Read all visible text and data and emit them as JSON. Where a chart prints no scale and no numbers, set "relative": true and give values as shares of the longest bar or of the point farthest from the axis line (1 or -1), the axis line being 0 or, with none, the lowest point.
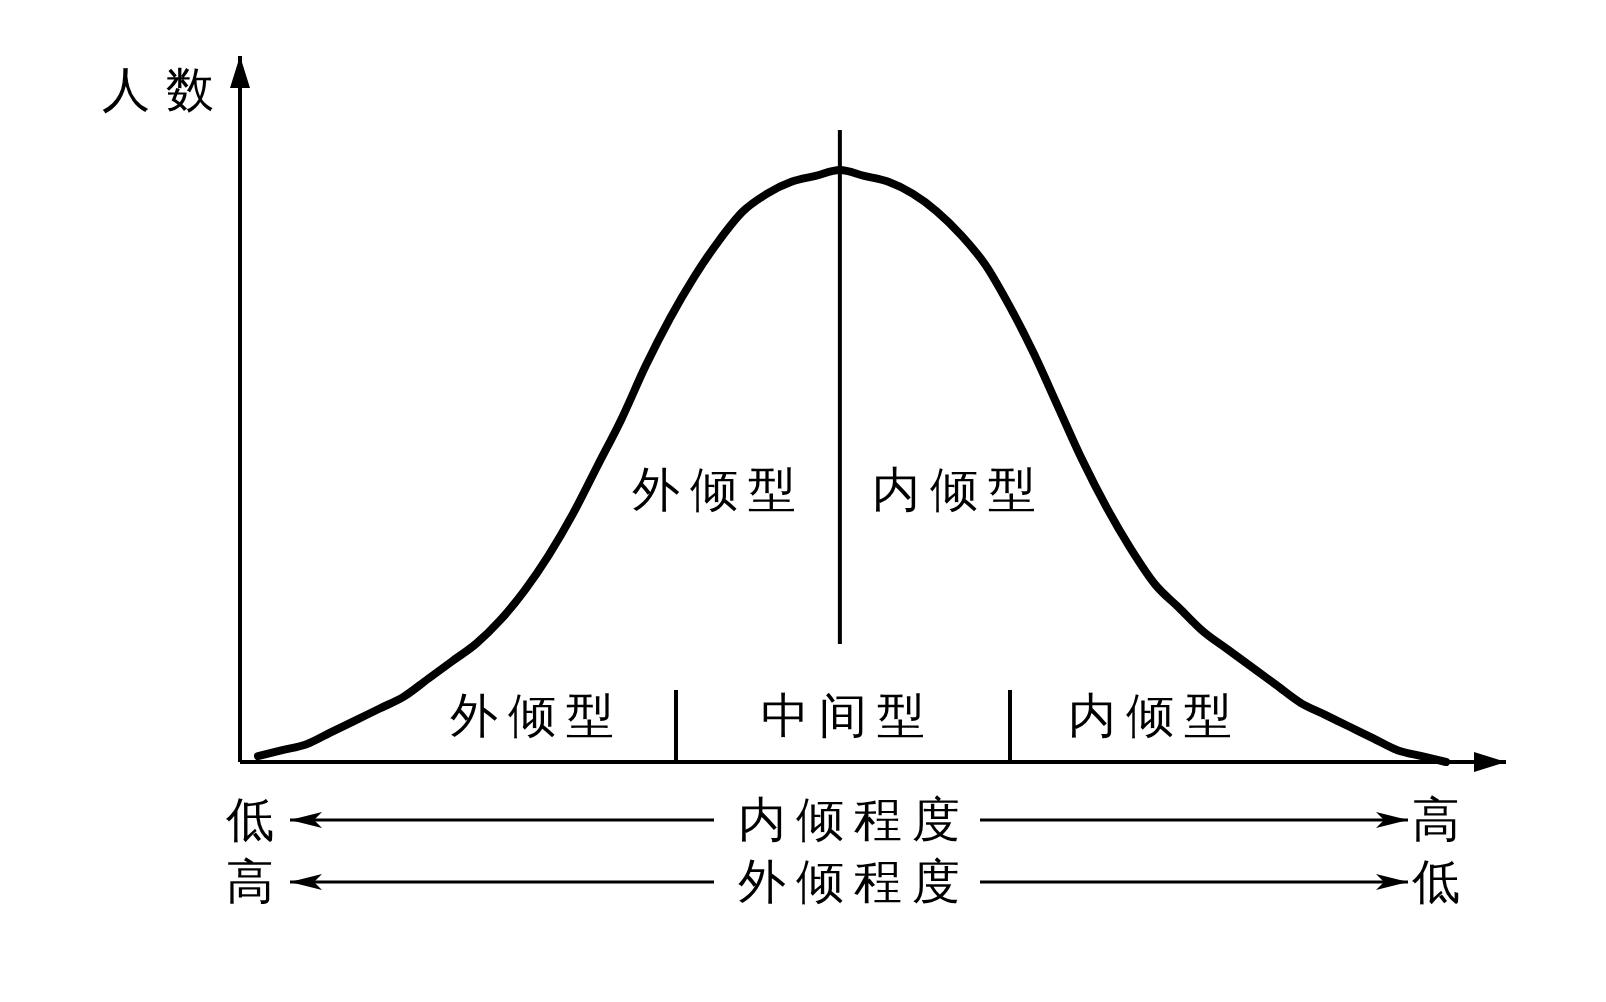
{
  "chart_data": {
    "type": "line",
    "relative": true,
    "ylabel": "人数",
    "categories": [
      null,
      null,
      null,
      null,
      null,
      null,
      null,
      null,
      null,
      null,
      null,
      null,
      null,
      null,
      null,
      null,
      null,
      null,
      null,
      null,
      null,
      null,
      null,
      null,
      null,
      null,
      null,
      null,
      null,
      null,
      null,
      null,
      null,
      null,
      null,
      null,
      null,
      null,
      null,
      null,
      null,
      null,
      null,
      null,
      null,
      null,
      null,
      null,
      null,
      null
    ],
    "series": [
      {
        "color": "#000000",
        "values": [
          0.01,
          0.02,
          0.03,
          0.05,
          0.07,
          0.09,
          0.11,
          0.14,
          0.17,
          0.2,
          0.24,
          0.29,
          0.35,
          0.42,
          0.5,
          0.58,
          0.67,
          0.75,
          0.82,
          0.88,
          0.93,
          0.96,
          0.98,
          0.99,
          1,
          0.99,
          0.98,
          0.96,
          0.93,
          0.89,
          0.84,
          0.77,
          0.69,
          0.6,
          0.51,
          0.43,
          0.36,
          0.3,
          0.26,
          0.22,
          0.19,
          0.16,
          0.13,
          0.1,
          0.08,
          0.06,
          0.04,
          0.02,
          0.01,
          0
        ]
      }
    ],
    "annotations": [
      "外倾型",
      "内倾型",
      "外倾型",
      "中间型",
      "内倾型",
      "低",
      "内倾程度",
      "高",
      "高",
      "外倾程度",
      "低"
    ]
  }
}
